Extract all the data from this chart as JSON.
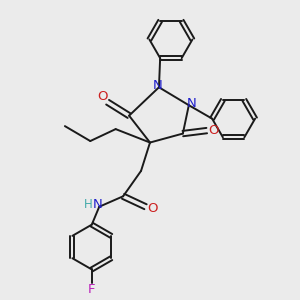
{
  "background_color": "#ebebeb",
  "bond_color": "#1a1a1a",
  "N_color": "#2020cc",
  "O_color": "#cc2020",
  "F_color": "#bb22bb",
  "H_color": "#44aaaa",
  "figsize": [
    3.0,
    3.0
  ],
  "dpi": 100,
  "xlim": [
    0,
    10
  ],
  "ylim": [
    0,
    10
  ]
}
